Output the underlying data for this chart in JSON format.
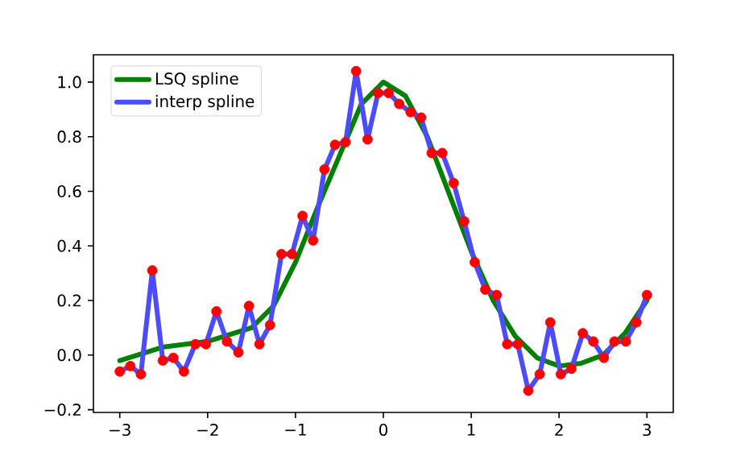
{
  "chart_data": {
    "type": "line",
    "xlim": [
      -3.3,
      3.3
    ],
    "ylim": [
      -0.21,
      1.1
    ],
    "xticks": [
      {
        "value": -3,
        "label": "−3"
      },
      {
        "value": -2,
        "label": "−2"
      },
      {
        "value": -1,
        "label": "−1"
      },
      0,
      1,
      2,
      3
    ],
    "yticks": [
      {
        "value": -0.2,
        "label": "−0.2"
      },
      {
        "value": 0,
        "label": "0.0"
      },
      {
        "value": 0.2,
        "label": "0.2"
      },
      {
        "value": 0.4,
        "label": "0.4"
      },
      {
        "value": 0.6,
        "label": "0.6"
      },
      {
        "value": 0.8,
        "label": "0.8"
      },
      {
        "value": 1,
        "label": "1.0"
      }
    ],
    "legend": "top left",
    "series": [
      {
        "type": "scatter",
        "marker": "circle",
        "color": "#ff0000",
        "x": [
          -3,
          -2.88,
          -2.76,
          -2.63,
          -2.51,
          -2.39,
          -2.27,
          -2.14,
          -2.02,
          -1.9,
          -1.78,
          -1.65,
          -1.53,
          -1.41,
          -1.29,
          -1.16,
          -1.04,
          -0.92,
          -0.8,
          -0.67,
          -0.55,
          -0.43,
          -0.31,
          -0.18,
          -0.06,
          0.06,
          0.18,
          0.31,
          0.43,
          0.55,
          0.67,
          0.8,
          0.92,
          1.04,
          1.16,
          1.29,
          1.41,
          1.53,
          1.65,
          1.78,
          1.9,
          2.02,
          2.14,
          2.27,
          2.39,
          2.51,
          2.63,
          2.76,
          2.88,
          3
        ],
        "values": [
          -0.06,
          -0.04,
          -0.07,
          0.31,
          -0.02,
          -0.01,
          -0.06,
          0.04,
          0.04,
          0.16,
          0.05,
          0.01,
          0.18,
          0.04,
          0.11,
          0.37,
          0.37,
          0.51,
          0.42,
          0.68,
          0.77,
          0.78,
          1.04,
          0.79,
          0.96,
          0.96,
          0.92,
          0.89,
          0.87,
          0.74,
          0.74,
          0.63,
          0.49,
          0.34,
          0.24,
          0.22,
          0.04,
          0.04,
          -0.13,
          -0.07,
          0.12,
          -0.07,
          -0.05,
          0.08,
          0.05,
          -0.01,
          0.05,
          0.05,
          0.12,
          0.22
        ]
      },
      {
        "name": "LSQ spline",
        "color": "#008000",
        "x": [
          -3,
          -2.5,
          -2,
          -1.5,
          -1.25,
          -1,
          -0.75,
          -0.5,
          -0.25,
          0,
          0.25,
          0.5,
          0.75,
          1,
          1.25,
          1.5,
          1.75,
          2,
          2.25,
          2.5,
          2.75,
          3
        ],
        "values": [
          -0.02,
          0.03,
          0.05,
          0.1,
          0.18,
          0.34,
          0.54,
          0.73,
          0.92,
          1.0,
          0.95,
          0.8,
          0.59,
          0.38,
          0.2,
          0.07,
          -0.01,
          -0.04,
          -0.03,
          0.0,
          0.08,
          0.2
        ]
      },
      {
        "name": "interp spline",
        "color": "#4c4cff",
        "x": [
          -3,
          -2.88,
          -2.76,
          -2.63,
          -2.51,
          -2.39,
          -2.27,
          -2.14,
          -2.02,
          -1.9,
          -1.78,
          -1.65,
          -1.53,
          -1.41,
          -1.29,
          -1.16,
          -1.04,
          -0.92,
          -0.8,
          -0.67,
          -0.55,
          -0.43,
          -0.31,
          -0.18,
          -0.06,
          0.06,
          0.18,
          0.31,
          0.43,
          0.55,
          0.67,
          0.8,
          0.92,
          1.04,
          1.16,
          1.29,
          1.41,
          1.53,
          1.65,
          1.78,
          1.9,
          2.02,
          2.14,
          2.27,
          2.39,
          2.51,
          2.63,
          2.76,
          2.88,
          3
        ],
        "values": [
          -0.06,
          -0.04,
          -0.07,
          0.31,
          -0.02,
          -0.01,
          -0.06,
          0.04,
          0.04,
          0.16,
          0.05,
          0.01,
          0.18,
          0.04,
          0.11,
          0.37,
          0.37,
          0.51,
          0.42,
          0.68,
          0.77,
          0.78,
          1.04,
          0.79,
          0.96,
          0.96,
          0.92,
          0.89,
          0.87,
          0.74,
          0.74,
          0.63,
          0.49,
          0.34,
          0.24,
          0.22,
          0.04,
          0.04,
          -0.13,
          -0.07,
          0.12,
          -0.07,
          -0.05,
          0.08,
          0.05,
          -0.01,
          0.05,
          0.05,
          0.12,
          0.22
        ]
      }
    ]
  }
}
